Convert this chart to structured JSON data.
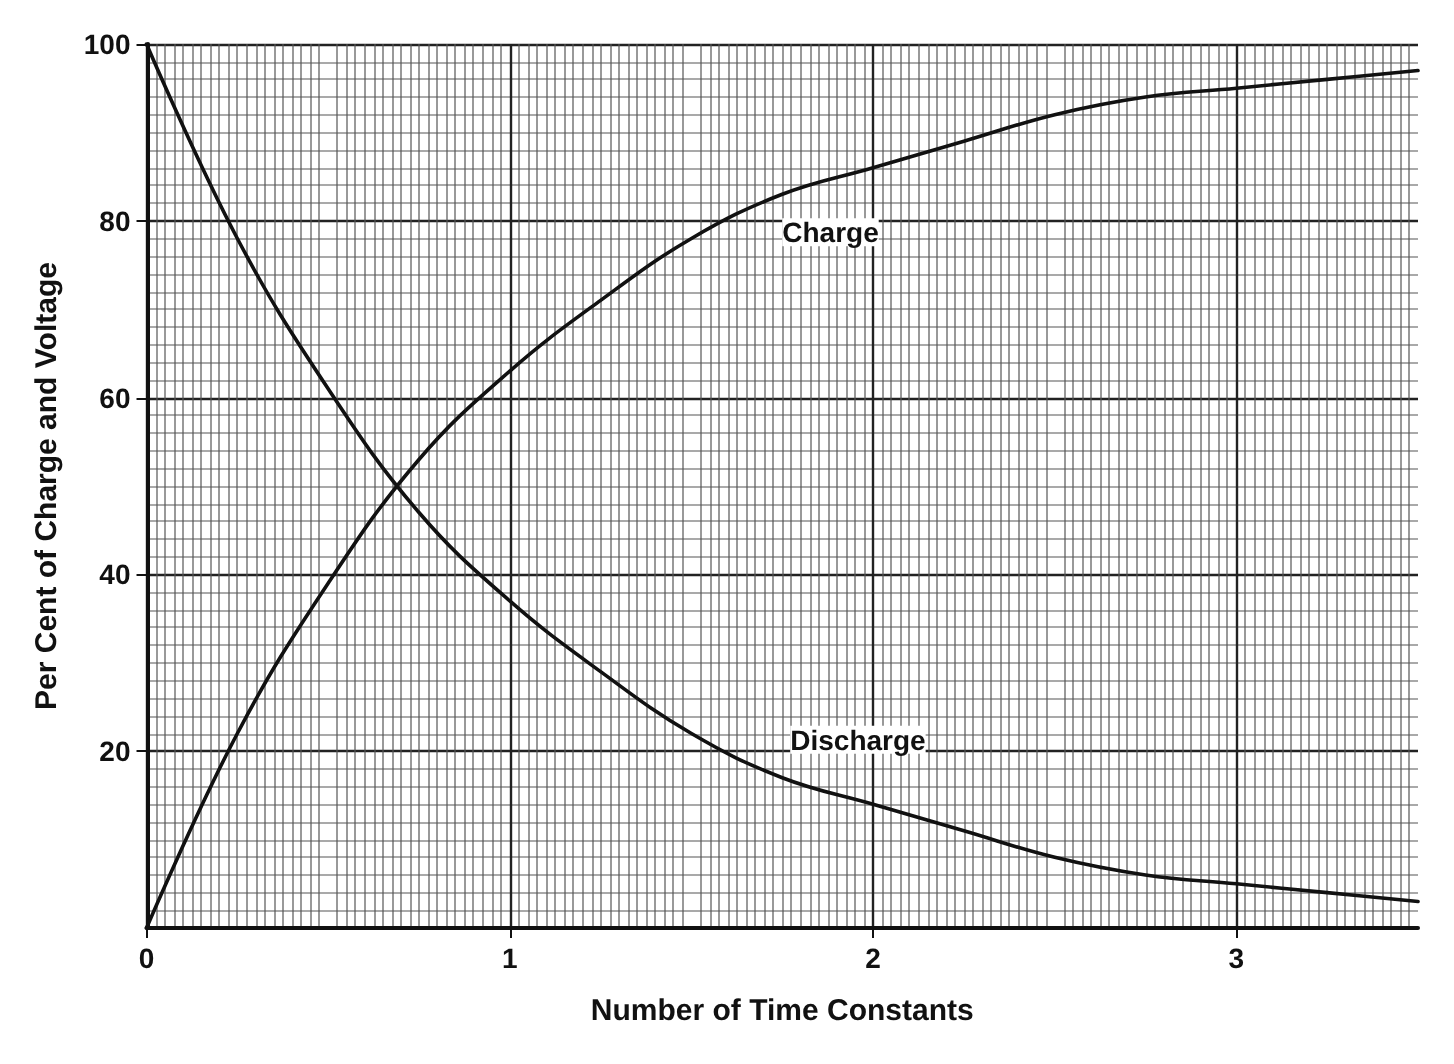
{
  "chart_data": {
    "type": "line",
    "xlabel": "Number of Time Constants",
    "ylabel": "Per Cent of Charge and Voltage",
    "x": [
      0,
      0.25,
      0.5,
      0.75,
      1,
      1.25,
      1.5,
      1.75,
      2,
      2.25,
      2.5,
      2.75,
      3,
      3.25,
      3.5
    ],
    "series": [
      {
        "name": "Charge",
        "color": "#111111",
        "values": [
          0,
          22,
          39,
          53,
          63,
          71,
          78,
          83,
          86,
          89,
          92,
          94,
          95,
          96,
          97
        ]
      },
      {
        "name": "Discharge",
        "color": "#111111",
        "values": [
          100,
          78,
          61,
          47,
          37,
          29,
          22,
          17,
          14,
          11,
          8,
          6,
          5,
          4,
          3
        ]
      }
    ],
    "xlim": [
      0,
      3.5
    ],
    "xticks": [
      0,
      1,
      2,
      3
    ],
    "ylim": [
      0,
      100
    ],
    "yticks": [
      20,
      40,
      60,
      80,
      100
    ],
    "grid": true,
    "line_style": "solid"
  }
}
